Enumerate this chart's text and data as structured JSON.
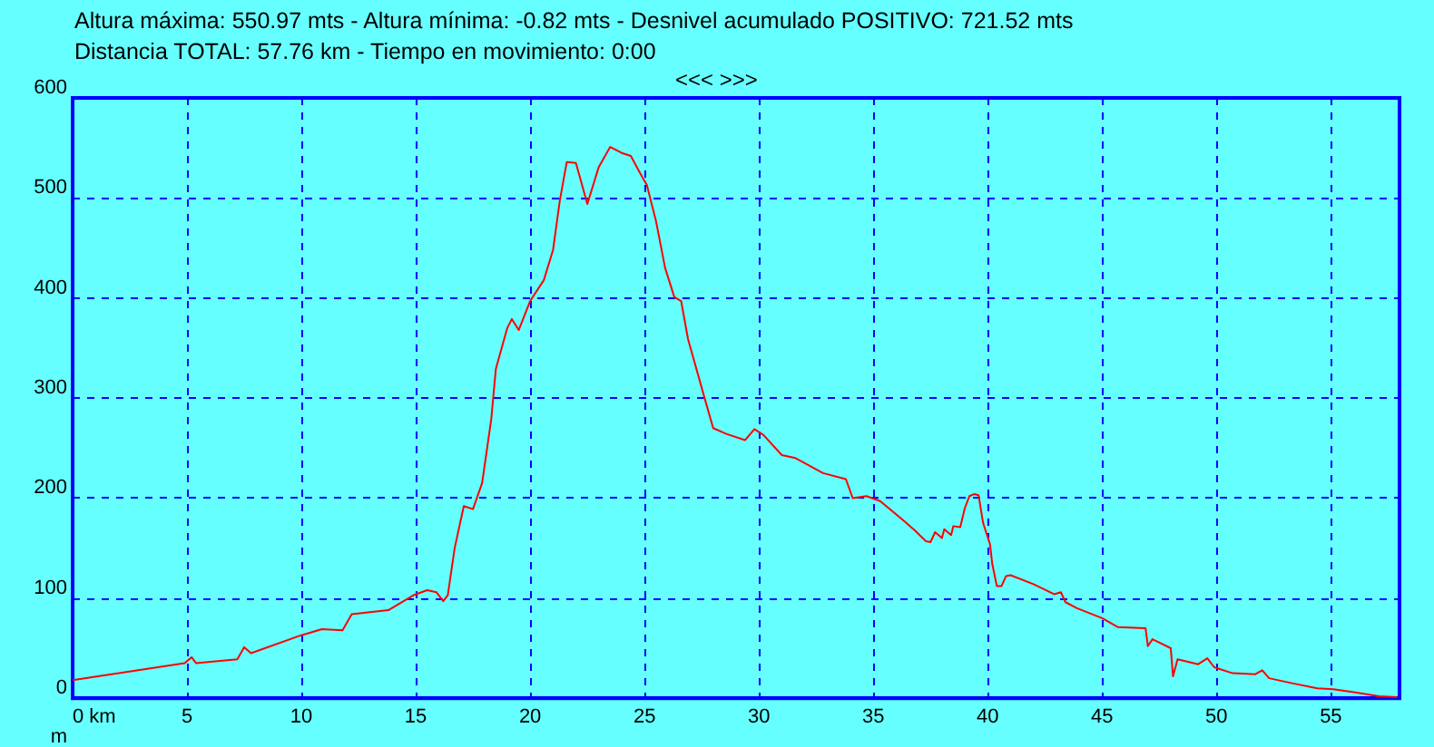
{
  "chart_data": {
    "type": "line",
    "title": "Altura máxima: 550.97 mts - Altura mínima: -0.82 mts - Desnivel acumulado POSITIVO: 721.52 mts",
    "subtitle": "Distancia TOTAL: 57.76 km - Tiempo en movimiento: 0:00",
    "ylabel": "m",
    "annotations": [
      "<<< >>>"
    ],
    "series": [
      {
        "color": "#ff0000",
        "x": [
          0,
          4.9,
          5.2,
          5.4,
          7.2,
          7.5,
          7.8,
          10,
          10.9,
          11.8,
          12.2,
          13.8,
          14.9,
          15.5,
          15.9,
          16.2,
          16.4,
          16.7,
          17.1,
          17.5,
          17.9,
          18.3,
          18.5,
          19.0,
          19.2,
          19.5,
          20.0,
          20.6,
          21.0,
          21.3,
          21.6,
          22.0,
          22.5,
          23.0,
          23.5,
          24.0,
          24.4,
          24.8,
          25.1,
          25.5,
          25.9,
          26.3,
          26.6,
          26.9,
          27.6,
          28.0,
          28.6,
          29.4,
          29.8,
          30.2,
          31.0,
          31.6,
          32.8,
          33.8,
          34.1,
          34.7,
          35.3,
          36.3,
          36.8,
          37.3,
          37.5,
          37.7,
          38.0,
          38.1,
          38.4,
          38.5,
          38.8,
          39.0,
          39.2,
          39.4,
          39.6,
          39.8,
          40.1,
          40.2,
          40.4,
          40.6,
          40.8,
          41.0,
          42.0,
          42.9,
          43.2,
          43.4,
          43.9,
          45.0,
          45.7,
          46.9,
          47.0,
          47.2,
          48.0,
          48.1,
          48.3,
          49.2,
          49.6,
          49.9,
          50.7,
          51.7,
          52.0,
          52.3,
          53.3,
          54.4,
          55.1,
          56.0,
          57.1,
          57.9
        ],
        "values": [
          18,
          35,
          41,
          35,
          39,
          51,
          45,
          63,
          69,
          68,
          84,
          88,
          103,
          108,
          106,
          97,
          103,
          150,
          192,
          189,
          215,
          279,
          329,
          370,
          379,
          368,
          397,
          418,
          448,
          498,
          536,
          535,
          494,
          531,
          551,
          545,
          542,
          525,
          513,
          477,
          430,
          401,
          397,
          359,
          302,
          270,
          264,
          258,
          269,
          263,
          243,
          240,
          225,
          219,
          200,
          202,
          197,
          178,
          168,
          157,
          156,
          166,
          160,
          169,
          163,
          172,
          171,
          190,
          202,
          204,
          203,
          175,
          154,
          134,
          112,
          112,
          122,
          123,
          114,
          104,
          106,
          96,
          90,
          80,
          71,
          70,
          52,
          59,
          50,
          22,
          39,
          34,
          40,
          31,
          25,
          24,
          28,
          20,
          15,
          10,
          9,
          6,
          2,
          1
        ]
      }
    ],
    "xlim": [
      0,
      58
    ],
    "xticks": [
      {
        "value": 0,
        "label": "0 km"
      },
      5,
      10,
      15,
      20,
      25,
      30,
      35,
      40,
      45,
      50,
      55
    ],
    "ylim": [
      0,
      600
    ],
    "yticks": [
      0,
      100,
      200,
      300,
      400,
      500,
      600
    ],
    "grid": true,
    "marker": "none",
    "line_style": "solid"
  }
}
